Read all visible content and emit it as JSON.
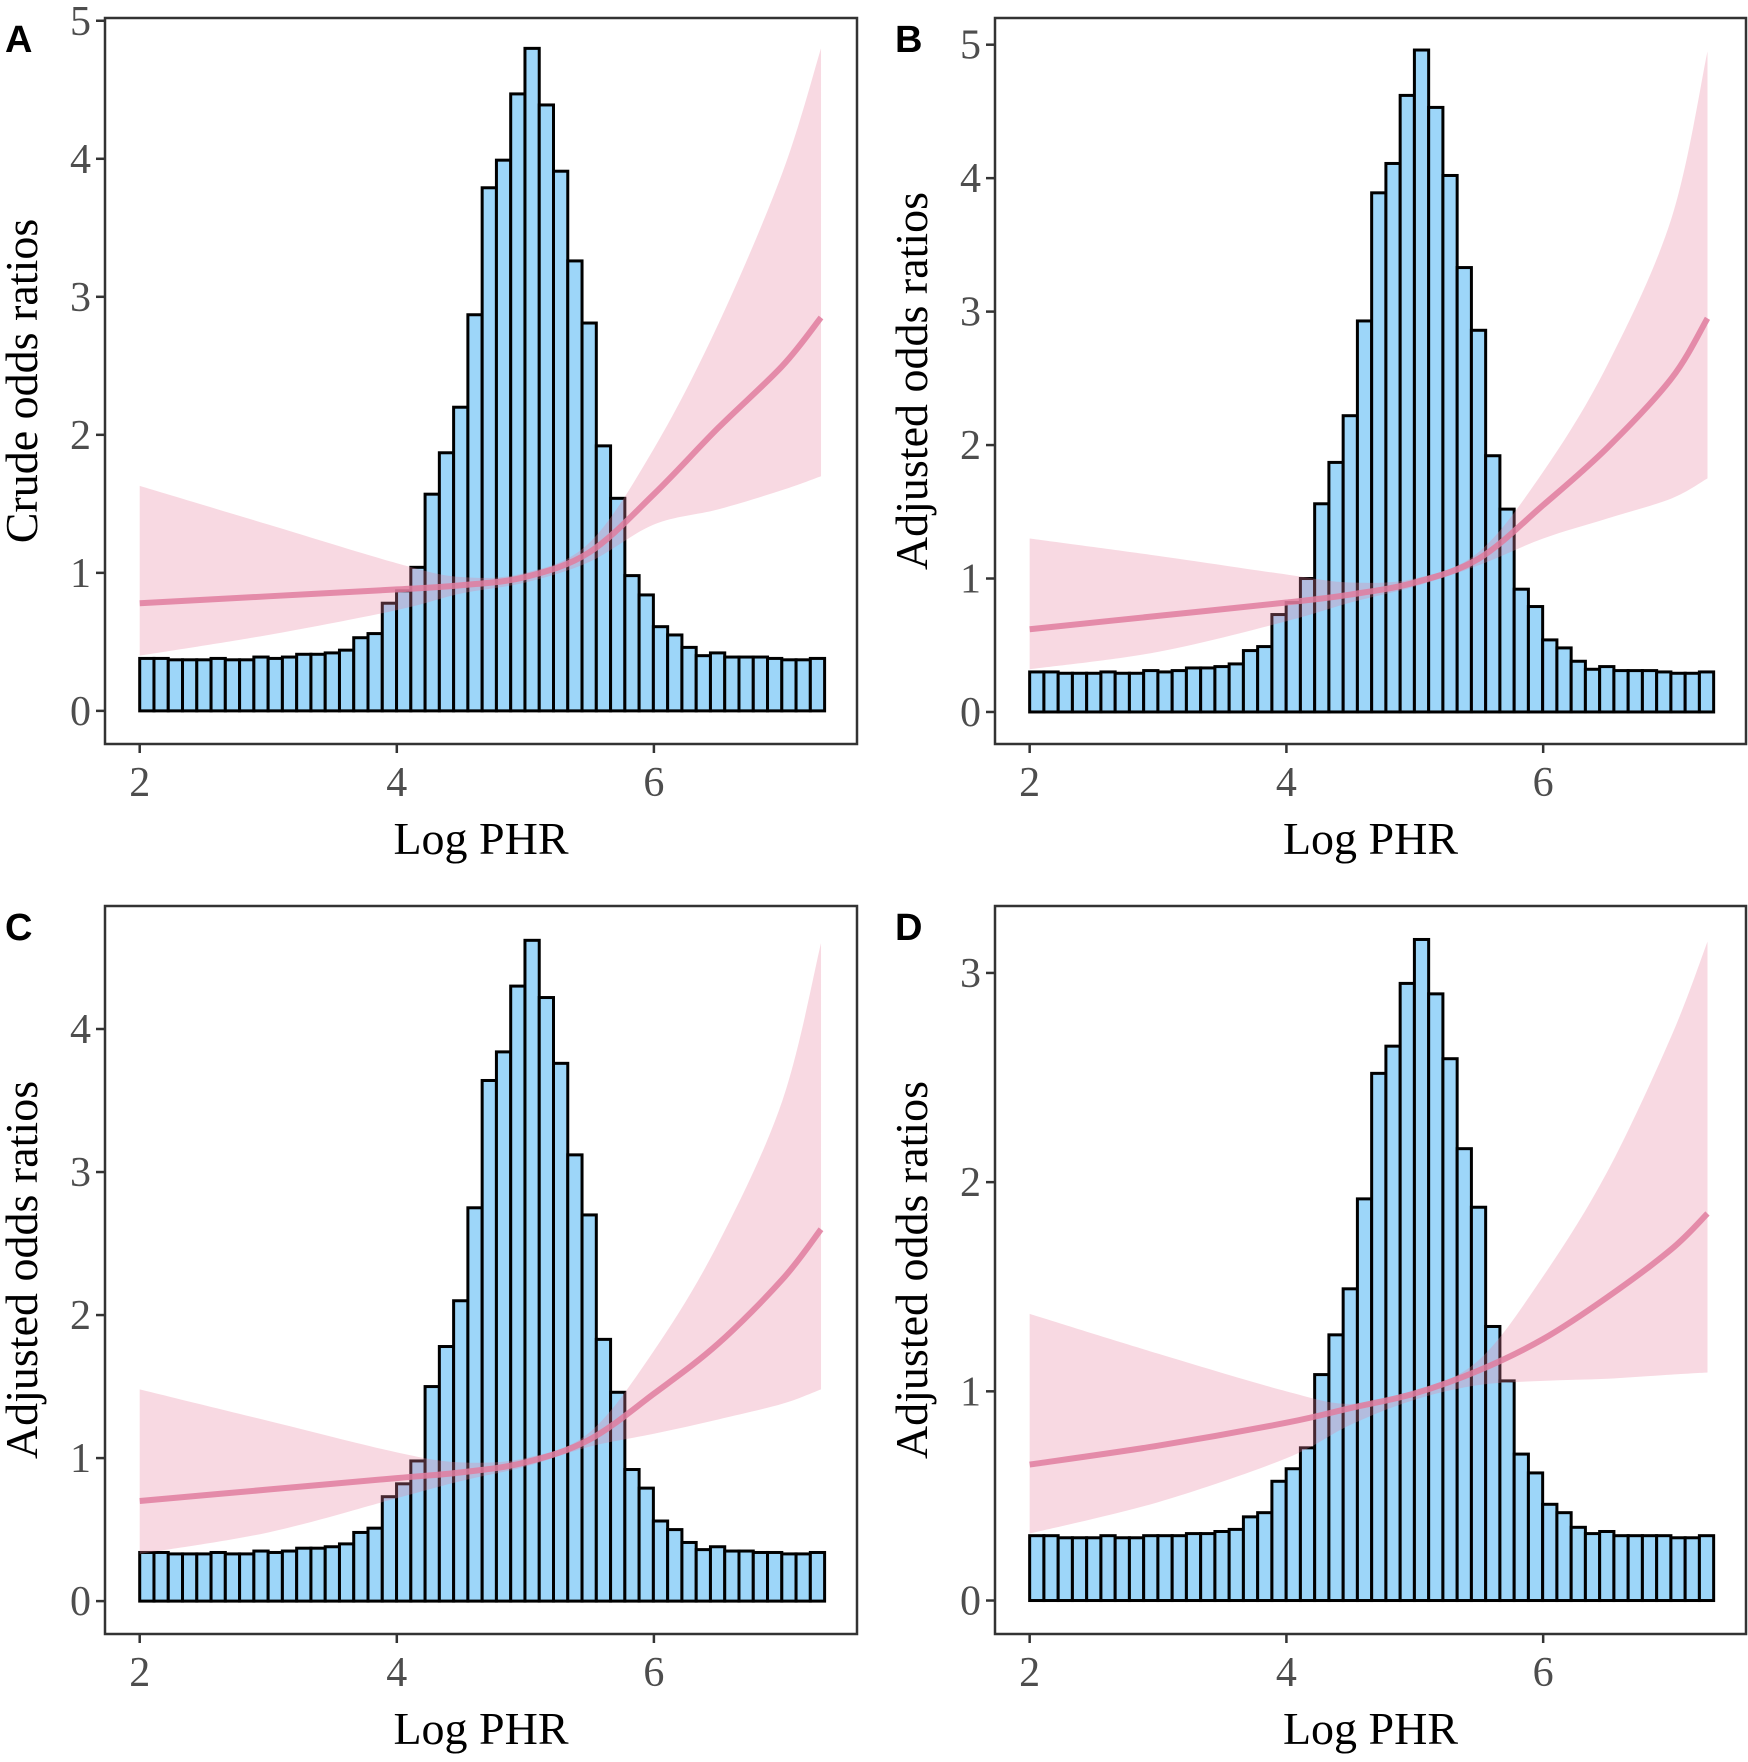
{
  "chart_data": [
    {
      "type": "bar",
      "panel_label": "A",
      "xlabel": "Log PHR",
      "ylabel": "Crude odds ratios",
      "xlim": [
        1.73,
        7.58
      ],
      "ylim": [
        -0.24,
        5.02
      ],
      "x_ticks": [
        2,
        4,
        6
      ],
      "y_ticks": [
        0,
        1,
        2,
        3,
        4,
        5
      ],
      "grid": false,
      "histogram": {
        "bin_start": 2.0,
        "bin_width": 0.111,
        "values": [
          0.38,
          0.38,
          0.37,
          0.37,
          0.37,
          0.38,
          0.37,
          0.37,
          0.39,
          0.38,
          0.39,
          0.41,
          0.41,
          0.42,
          0.44,
          0.53,
          0.56,
          0.78,
          0.87,
          1.04,
          1.57,
          1.87,
          2.2,
          2.87,
          3.79,
          3.99,
          4.47,
          4.8,
          4.39,
          3.91,
          3.26,
          2.81,
          1.92,
          1.54,
          0.98,
          0.84,
          0.61,
          0.55,
          0.46,
          0.4,
          0.42,
          0.39,
          0.39,
          0.39,
          0.38,
          0.37,
          0.37,
          0.38
        ]
      },
      "curve": {
        "x": [
          2.0,
          3.0,
          4.0,
          4.5,
          5.0,
          5.5,
          6.0,
          6.5,
          7.0,
          7.3
        ],
        "or": [
          0.78,
          0.83,
          0.88,
          0.91,
          0.97,
          1.15,
          1.57,
          2.05,
          2.5,
          2.85
        ],
        "lower": [
          0.4,
          0.55,
          0.73,
          0.85,
          0.93,
          1.08,
          1.35,
          1.46,
          1.6,
          1.7
        ],
        "upper": [
          1.63,
          1.35,
          1.07,
          0.97,
          1.0,
          1.22,
          1.9,
          2.8,
          3.9,
          4.8
        ]
      }
    },
    {
      "type": "bar",
      "panel_label": "B",
      "xlabel": "Log PHR",
      "ylabel": "Adjusted odds ratios",
      "xlim": [
        1.73,
        7.58
      ],
      "ylim": [
        -0.24,
        5.2
      ],
      "x_ticks": [
        2,
        4,
        6
      ],
      "y_ticks": [
        0,
        1,
        2,
        3,
        4,
        5
      ],
      "grid": false,
      "histogram": {
        "bin_start": 2.0,
        "bin_width": 0.111,
        "values": [
          0.3,
          0.3,
          0.29,
          0.29,
          0.29,
          0.3,
          0.29,
          0.29,
          0.31,
          0.3,
          0.31,
          0.33,
          0.33,
          0.34,
          0.36,
          0.46,
          0.49,
          0.73,
          0.82,
          1.0,
          1.56,
          1.87,
          2.22,
          2.93,
          3.89,
          4.11,
          4.62,
          4.96,
          4.53,
          4.02,
          3.33,
          2.86,
          1.92,
          1.52,
          0.92,
          0.79,
          0.54,
          0.48,
          0.38,
          0.32,
          0.34,
          0.31,
          0.31,
          0.31,
          0.3,
          0.29,
          0.29,
          0.3
        ]
      },
      "curve": {
        "x": [
          2.0,
          3.0,
          4.0,
          4.5,
          5.0,
          5.5,
          6.0,
          6.5,
          7.0,
          7.28
        ],
        "or": [
          0.62,
          0.72,
          0.82,
          0.88,
          0.97,
          1.15,
          1.55,
          1.98,
          2.5,
          2.95
        ],
        "lower": [
          0.32,
          0.45,
          0.68,
          0.82,
          0.94,
          1.1,
          1.3,
          1.45,
          1.6,
          1.75
        ],
        "upper": [
          1.3,
          1.17,
          1.03,
          0.97,
          1.0,
          1.2,
          1.8,
          2.6,
          3.7,
          4.95
        ]
      }
    },
    {
      "type": "bar",
      "panel_label": "C",
      "xlabel": "Log PHR",
      "ylabel": "Adjusted odds ratios",
      "xlim": [
        1.73,
        7.58
      ],
      "ylim": [
        -0.23,
        4.86
      ],
      "x_ticks": [
        2,
        4,
        6
      ],
      "y_ticks": [
        0,
        1,
        2,
        3,
        4
      ],
      "grid": false,
      "histogram": {
        "bin_start": 2.0,
        "bin_width": 0.111,
        "values": [
          0.34,
          0.34,
          0.33,
          0.33,
          0.33,
          0.34,
          0.33,
          0.33,
          0.35,
          0.34,
          0.35,
          0.37,
          0.37,
          0.38,
          0.4,
          0.48,
          0.51,
          0.73,
          0.82,
          0.98,
          1.5,
          1.78,
          2.1,
          2.75,
          3.64,
          3.84,
          4.3,
          4.62,
          4.22,
          3.76,
          3.12,
          2.7,
          1.83,
          1.46,
          0.92,
          0.79,
          0.56,
          0.5,
          0.41,
          0.36,
          0.38,
          0.35,
          0.35,
          0.34,
          0.34,
          0.33,
          0.33,
          0.34
        ]
      },
      "curve": {
        "x": [
          2.0,
          3.0,
          4.0,
          4.5,
          5.0,
          5.5,
          6.0,
          6.5,
          7.0,
          7.3
        ],
        "or": [
          0.7,
          0.78,
          0.86,
          0.9,
          0.97,
          1.13,
          1.45,
          1.8,
          2.25,
          2.6
        ],
        "lower": [
          0.33,
          0.48,
          0.72,
          0.84,
          0.94,
          1.08,
          1.17,
          1.27,
          1.38,
          1.48
        ],
        "upper": [
          1.48,
          1.26,
          1.04,
          0.97,
          1.0,
          1.18,
          1.75,
          2.5,
          3.5,
          4.6
        ]
      }
    },
    {
      "type": "bar",
      "panel_label": "D",
      "xlabel": "Log PHR",
      "ylabel": "Adjusted odds ratios",
      "xlim": [
        1.73,
        7.58
      ],
      "ylim": [
        -0.16,
        3.32
      ],
      "x_ticks": [
        2,
        4,
        6
      ],
      "y_ticks": [
        0,
        1,
        2,
        3
      ],
      "grid": false,
      "histogram": {
        "bin_start": 2.0,
        "bin_width": 0.111,
        "values": [
          0.31,
          0.31,
          0.3,
          0.3,
          0.3,
          0.31,
          0.3,
          0.3,
          0.31,
          0.31,
          0.31,
          0.32,
          0.32,
          0.33,
          0.34,
          0.4,
          0.42,
          0.57,
          0.63,
          0.73,
          1.08,
          1.27,
          1.49,
          1.92,
          2.52,
          2.65,
          2.95,
          3.16,
          2.9,
          2.59,
          2.16,
          1.88,
          1.31,
          1.05,
          0.7,
          0.61,
          0.46,
          0.42,
          0.35,
          0.32,
          0.33,
          0.31,
          0.31,
          0.31,
          0.31,
          0.3,
          0.3,
          0.31
        ]
      },
      "curve": {
        "x": [
          2.0,
          3.0,
          4.0,
          4.5,
          5.0,
          5.5,
          6.0,
          6.5,
          7.0,
          7.28
        ],
        "or": [
          0.65,
          0.74,
          0.85,
          0.92,
          0.99,
          1.1,
          1.25,
          1.45,
          1.68,
          1.85
        ],
        "lower": [
          0.32,
          0.47,
          0.68,
          0.84,
          0.96,
          1.03,
          1.05,
          1.06,
          1.08,
          1.09
        ],
        "upper": [
          1.37,
          1.18,
          1.0,
          0.94,
          1.0,
          1.15,
          1.55,
          2.05,
          2.7,
          3.15
        ]
      }
    }
  ],
  "colors": {
    "bar_fill": "#9dd6f9",
    "bar_stroke": "#000000",
    "ribbon": "#e8809f",
    "line": "#e07c9f",
    "axis": "#333333",
    "tick_label": "#4d4d4d"
  }
}
